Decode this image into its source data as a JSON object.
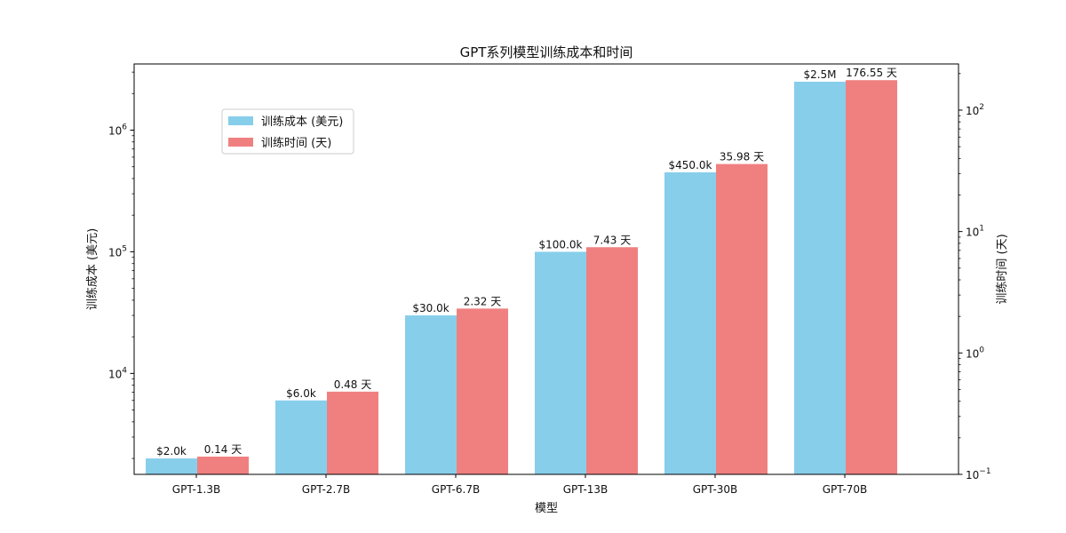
{
  "chart_data": {
    "type": "bar",
    "title": "GPT系列模型训练成本和时间",
    "xlabel": "模型",
    "ylabel_left": "训练成本 (美元)",
    "ylabel_right": "训练时间 (天)",
    "categories": [
      "GPT-1.3B",
      "GPT-2.7B",
      "GPT-6.7B",
      "GPT-13B",
      "GPT-30B",
      "GPT-70B"
    ],
    "series": [
      {
        "name": "训练成本 (美元)",
        "axis": "left",
        "color": "#87ceeb",
        "values": [
          2000,
          6000,
          30000,
          100000,
          450000,
          2500000
        ],
        "labels": [
          "$2.0k",
          "$6.0k",
          "$30.0k",
          "$100.0k",
          "$450.0k",
          "$2.5M"
        ]
      },
      {
        "name": "训练时间 (天)",
        "axis": "right",
        "color": "#f08080",
        "values": [
          0.14,
          0.48,
          2.32,
          7.43,
          35.98,
          176.55
        ],
        "labels": [
          "0.14 天",
          "0.48 天",
          "2.32 天",
          "7.43 天",
          "35.98 天",
          "176.55 天"
        ]
      }
    ],
    "left_axis": {
      "scale": "log",
      "range": [
        1480,
        3500000
      ],
      "ticks": [
        {
          "value": 10000,
          "base": "10",
          "exp": "4"
        },
        {
          "value": 100000,
          "base": "10",
          "exp": "5"
        },
        {
          "value": 1000000,
          "base": "10",
          "exp": "6"
        }
      ]
    },
    "right_axis": {
      "scale": "log",
      "range": [
        0.1,
        240
      ],
      "ticks": [
        {
          "value": 0.1,
          "base": "10",
          "exp": "−1"
        },
        {
          "value": 1,
          "base": "10",
          "exp": "0"
        },
        {
          "value": 10,
          "base": "10",
          "exp": "1"
        },
        {
          "value": 100,
          "base": "10",
          "exp": "2"
        }
      ]
    },
    "legend_position": "upper-left",
    "grid": false
  }
}
